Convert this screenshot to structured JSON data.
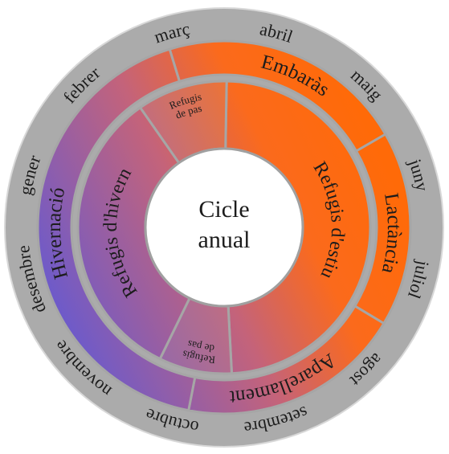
{
  "center": [
    "Cicle",
    "anual"
  ],
  "months": [
    "gener",
    "febrer",
    "març",
    "abril",
    "maig",
    "juny",
    "juliol",
    "agost",
    "setembre",
    "octubre",
    "novembre",
    "desembre"
  ],
  "phases": [
    "Hivernació",
    "Embaràs",
    "Lactància",
    "Aparellament"
  ],
  "refuges": {
    "winter": "Refugis d'hivern",
    "transit_top": [
      "Refugis",
      "de pas"
    ],
    "summer": "Refugis d'estiu",
    "transit_bottom": [
      "Refugis",
      "de pas"
    ]
  }
}
